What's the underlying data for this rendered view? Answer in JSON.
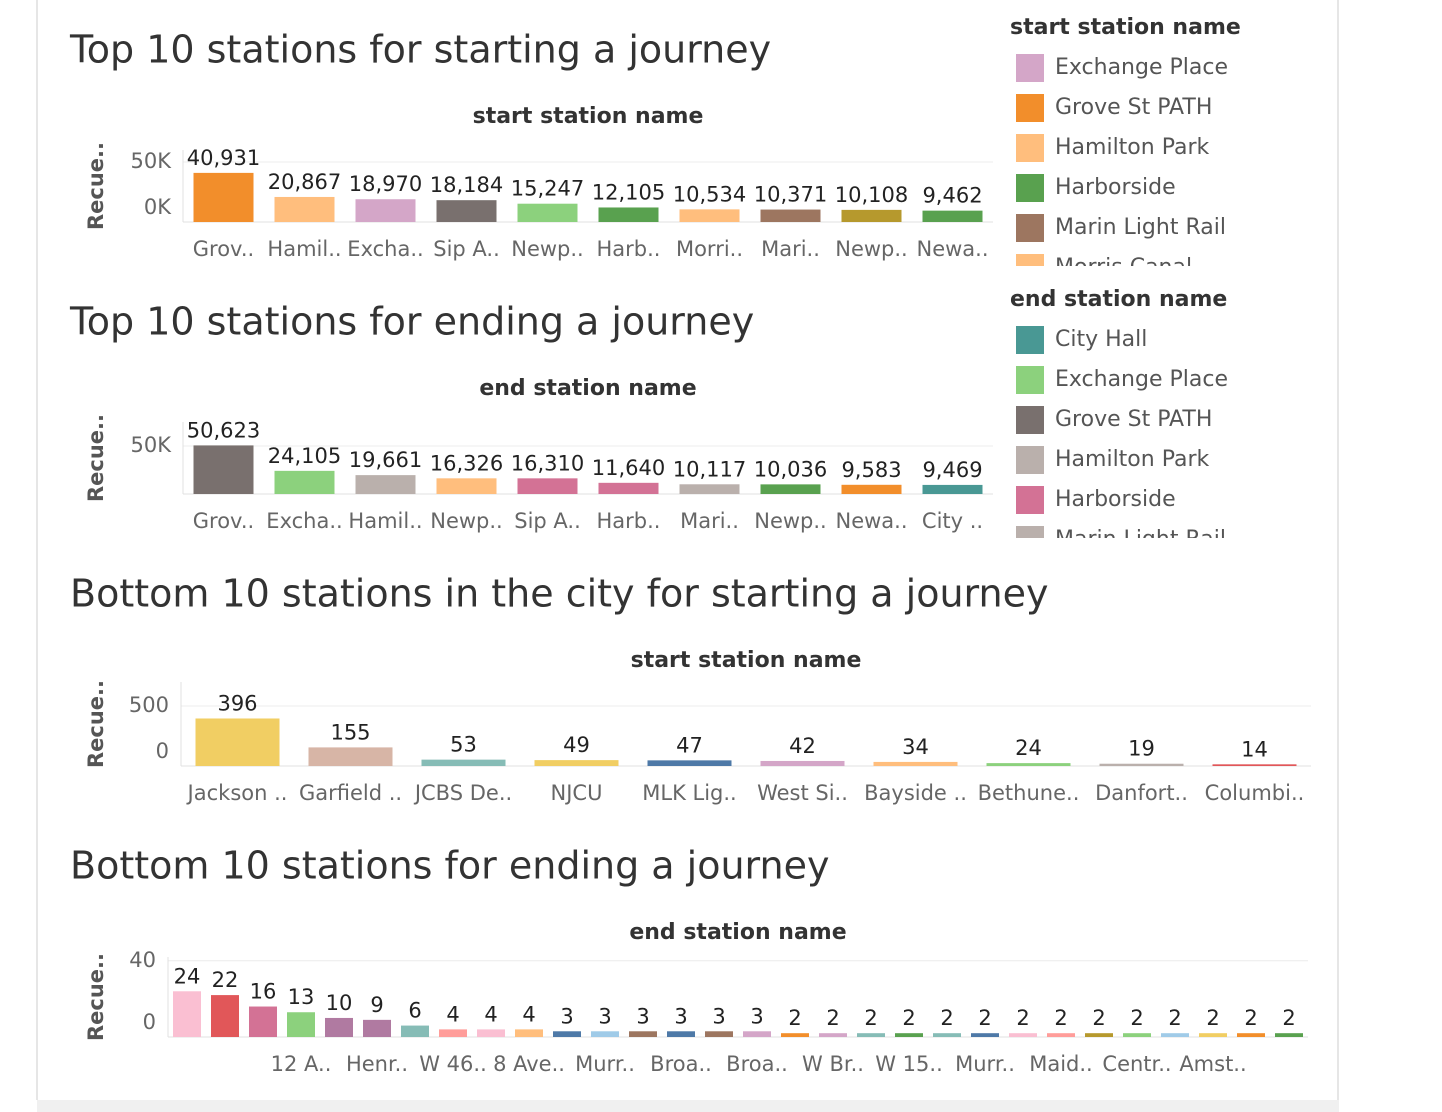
{
  "chart_data": [
    {
      "type": "bar",
      "title": "Top 10 stations for starting a journey",
      "subtitle": "start station name",
      "y_label": "Recue..",
      "categories": [
        "Grov..",
        "Hamil..",
        "Excha..",
        "Sip A..",
        "Newp..",
        "Harb..",
        "Morri..",
        "Mari..",
        "Newp..",
        "Newa.."
      ],
      "values": [
        40931,
        20867,
        18970,
        18184,
        15247,
        12105,
        10534,
        10371,
        10108,
        9462
      ],
      "value_labels": [
        "40,931",
        "20,867",
        "18,970",
        "18,184",
        "15,247",
        "12,105",
        "10,534",
        "10,371",
        "10,108",
        "9,462"
      ],
      "colors": [
        "#f28e2b",
        "#ffbe7d",
        "#d4a6c8",
        "#79706e",
        "#8cd17d",
        "#59a14f",
        "#ffbe7d",
        "#9d7660",
        "#b6992d",
        "#59a14f"
      ],
      "ylim": [
        0,
        60000
      ],
      "yticks": [
        {
          "value": 0,
          "label": "0K"
        },
        {
          "value": 50000,
          "label": "50K"
        }
      ],
      "grid": true
    },
    {
      "type": "bar",
      "title": "Top 10 stations for ending a journey",
      "subtitle": "end station name",
      "y_label": "Recue..",
      "categories": [
        "Grov..",
        "Excha..",
        "Hamil..",
        "Newp..",
        "Sip A..",
        "Harb..",
        "Mari..",
        "Newp..",
        "Newa..",
        "City .."
      ],
      "values": [
        50623,
        24105,
        19661,
        16326,
        16310,
        11640,
        10117,
        10036,
        9583,
        9469
      ],
      "value_labels": [
        "50,623",
        "24,105",
        "19,661",
        "16,326",
        "16,310",
        "11,640",
        "10,117",
        "10,036",
        "9,583",
        "9,469"
      ],
      "colors": [
        "#79706e",
        "#8cd17d",
        "#bab0ac",
        "#ffbe7d",
        "#d37295",
        "#d37295",
        "#bab0ac",
        "#59a14f",
        "#f28e2b",
        "#499894"
      ],
      "ylim": [
        0,
        75000
      ],
      "yticks": [
        {
          "value": 50000,
          "label": "50K"
        }
      ],
      "grid": true
    },
    {
      "type": "bar",
      "title": "Bottom 10 stations in the city for starting a journey",
      "subtitle": "start station name",
      "y_label": "Recue..",
      "categories": [
        "Jackson ..",
        "Garfield ..",
        "JCBS De..",
        "NJCU",
        "MLK Lig..",
        "West Si..",
        "Bayside ..",
        "Bethune..",
        "Danfort..",
        "Columbi.."
      ],
      "values": [
        396,
        155,
        53,
        49,
        47,
        42,
        34,
        24,
        19,
        14
      ],
      "colors": [
        "#f1ce63",
        "#d7b5a6",
        "#86bcb6",
        "#f1ce63",
        "#4e79a7",
        "#d4a6c8",
        "#ffbe7d",
        "#8cd17d",
        "#bab0ac",
        "#e15759"
      ],
      "ylim": [
        0,
        700
      ],
      "yticks": [
        0,
        500
      ],
      "grid": true
    },
    {
      "type": "bar",
      "title": "Bottom 10 stations for ending a journey",
      "subtitle": "end station name",
      "y_label": "Recue..",
      "categories": [
        null,
        null,
        null,
        "12 A..",
        null,
        "Henr..",
        null,
        "W 46..",
        null,
        "8 Ave..",
        null,
        "Murr..",
        null,
        "Broa..",
        null,
        "Broa..",
        null,
        "W Br..",
        null,
        "W 15..",
        null,
        "Murr..",
        null,
        "Maid..",
        null,
        "Centr..",
        null,
        "Amst..",
        null,
        null
      ],
      "values": [
        24,
        22,
        16,
        13,
        10,
        9,
        6,
        4,
        4,
        4,
        3,
        3,
        3,
        3,
        3,
        3,
        2,
        2,
        2,
        2,
        2,
        2,
        2,
        2,
        2,
        2,
        2,
        2,
        2,
        2
      ],
      "colors": [
        "#fabfd2",
        "#e15759",
        "#d37295",
        "#8cd17d",
        "#b07aa1",
        "#b07aa1",
        "#86bcb6",
        "#ff9d9a",
        "#fabfd2",
        "#ffbe7d",
        "#4e79a7",
        "#a0cbe8",
        "#9d7660",
        "#4e79a7",
        "#9d7660",
        "#d4a6c8",
        "#f28e2b",
        "#d4a6c8",
        "#86bcb6",
        "#59a14f",
        "#86bcb6",
        "#4e79a7",
        "#fabfd2",
        "#ff9d9a",
        "#b6992d",
        "#8cd17d",
        "#a0cbe8",
        "#f1ce63",
        "#f28e2b",
        "#59a14f"
      ],
      "ylim": [
        0,
        42
      ],
      "yticks": [
        0,
        40
      ],
      "grid": true
    }
  ],
  "legends": [
    {
      "title": "start station name",
      "items": [
        {
          "name": "Exchange Place",
          "color": "#d4a6c8"
        },
        {
          "name": "Grove St PATH",
          "color": "#f28e2b"
        },
        {
          "name": "Hamilton Park",
          "color": "#ffbe7d"
        },
        {
          "name": "Harborside",
          "color": "#59a14f"
        },
        {
          "name": "Marin Light Rail",
          "color": "#9d7660"
        },
        {
          "name": "Morris Canal",
          "color": "#ffbe7d"
        }
      ]
    },
    {
      "title": "end station name",
      "items": [
        {
          "name": "City Hall",
          "color": "#499894"
        },
        {
          "name": "Exchange Place",
          "color": "#8cd17d"
        },
        {
          "name": "Grove St PATH",
          "color": "#79706e"
        },
        {
          "name": "Hamilton Park",
          "color": "#bab0ac"
        },
        {
          "name": "Harborside",
          "color": "#d37295"
        },
        {
          "name": "Marin Light Rail",
          "color": "#bab0ac"
        }
      ]
    }
  ]
}
